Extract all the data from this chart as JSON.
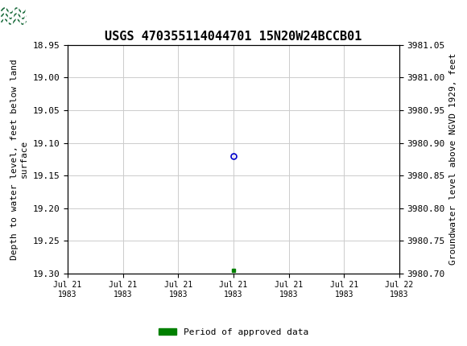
{
  "title": "USGS 470355114044701 15N20W24BCCB01",
  "ylabel_left": "Depth to water level, feet below land\nsurface",
  "ylabel_right": "Groundwater level above NGVD 1929, feet",
  "ylim_left": [
    19.3,
    18.95
  ],
  "ylim_right": [
    3980.7,
    3981.05
  ],
  "yticks_left": [
    18.95,
    19.0,
    19.05,
    19.1,
    19.15,
    19.2,
    19.25,
    19.3
  ],
  "yticks_right": [
    3981.05,
    3981.0,
    3980.95,
    3980.9,
    3980.85,
    3980.8,
    3980.75,
    3980.7
  ],
  "xlim": [
    0,
    6
  ],
  "xtick_labels": [
    "Jul 21\n1983",
    "Jul 21\n1983",
    "Jul 21\n1983",
    "Jul 21\n1983",
    "Jul 21\n1983",
    "Jul 21\n1983",
    "Jul 22\n1983"
  ],
  "xtick_positions": [
    0,
    1,
    2,
    3,
    4,
    5,
    6
  ],
  "data_point_x": 3.0,
  "data_point_y": 19.12,
  "marker_x": 3.0,
  "marker_y": 19.295,
  "point_color": "#0000cc",
  "marker_color": "#008000",
  "background_color": "#ffffff",
  "header_color": "#1a6b3c",
  "grid_color": "#cccccc",
  "legend_label": "Period of approved data",
  "title_fontsize": 11,
  "label_fontsize": 8,
  "tick_fontsize": 8
}
